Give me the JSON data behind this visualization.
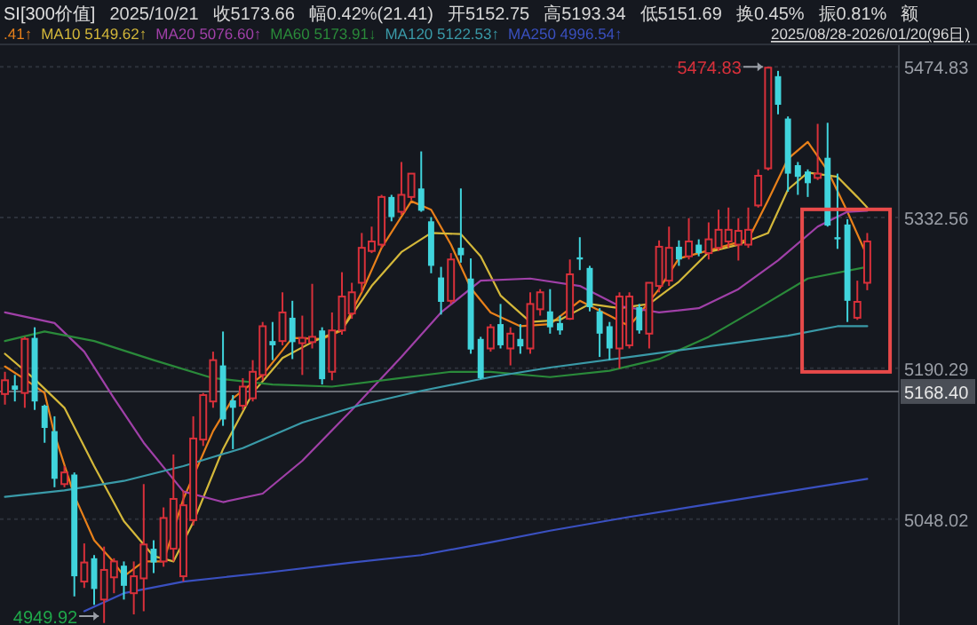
{
  "chart_data": {
    "type": "candlestick",
    "title": "SI[300价值]",
    "subtitle": "2025/08/28-2026/01/20(96日)",
    "annotations": [
      "2025/10/21",
      "收5173.66",
      "幅0.42%(21.41)",
      "开5152.75",
      "高5193.34",
      "低5151.69",
      "换0.45%",
      "振0.81%",
      "额",
      "5474.83",
      "4949.92"
    ],
    "categories": [
      null,
      null,
      null,
      null,
      null,
      null,
      null,
      null,
      null,
      null,
      null,
      null,
      null,
      null,
      null,
      null,
      null,
      null,
      null,
      null,
      null,
      null,
      null,
      null,
      null,
      null,
      null,
      null,
      null,
      null,
      null,
      null,
      null,
      null,
      null,
      null,
      null,
      null,
      null,
      null,
      null,
      null,
      null,
      null,
      null,
      null,
      null,
      null,
      null,
      null,
      null,
      null,
      null,
      null,
      null,
      null,
      null,
      null,
      null,
      null,
      null,
      null,
      null,
      null,
      null,
      null,
      null,
      null,
      null,
      null,
      null,
      null,
      null,
      null,
      null,
      null,
      null,
      null,
      null,
      null,
      null,
      null,
      null,
      null,
      null,
      null,
      null,
      null
    ],
    "ohlc": [
      [
        5166,
        5187,
        5156,
        5179
      ],
      [
        5174,
        5184,
        5159,
        5170
      ],
      [
        5167,
        5220,
        5153,
        5218
      ],
      [
        5219,
        5229,
        5151,
        5159
      ],
      [
        5155,
        5156,
        5120,
        5134
      ],
      [
        5131,
        5145,
        5078,
        5086
      ],
      [
        5081,
        5098,
        5078,
        5092
      ],
      [
        5090,
        5092,
        4975,
        4994
      ],
      [
        4989,
        5025,
        4983,
        5007
      ],
      [
        5011,
        5014,
        4967,
        4982
      ],
      [
        4972,
        5022,
        4949.92,
        5000
      ],
      [
        4993,
        5011,
        4978,
        5008
      ],
      [
        5004,
        5008,
        4972,
        4985
      ],
      [
        4978,
        5008,
        4958,
        4994
      ],
      [
        4992,
        5081,
        4961,
        5024
      ],
      [
        5020,
        5028,
        4997,
        5007
      ],
      [
        5008,
        5059,
        5003,
        5049
      ],
      [
        5020,
        5109,
        5008,
        5067
      ],
      [
        4994,
        5075,
        4989,
        5061
      ],
      [
        5047,
        5145,
        5042,
        5124
      ],
      [
        5123,
        5167,
        5117,
        5165
      ],
      [
        5159,
        5206,
        5153,
        5198
      ],
      [
        5193,
        5225,
        5136,
        5142
      ],
      [
        5160,
        5165,
        5114,
        5153
      ],
      [
        5155,
        5181,
        5151,
        5173
      ],
      [
        5162,
        5198,
        5159,
        5187
      ],
      [
        5184,
        5234,
        5179,
        5230
      ],
      [
        5216,
        5234,
        5198,
        5212
      ],
      [
        5216,
        5262,
        5212,
        5243
      ],
      [
        5238,
        5254,
        5199,
        5215
      ],
      [
        5214,
        5240,
        5184,
        5219
      ],
      [
        5215,
        5270,
        5209,
        5220
      ],
      [
        5226,
        5229,
        5175,
        5180
      ],
      [
        5187,
        5243,
        5179,
        5226
      ],
      [
        5226,
        5281,
        5222,
        5258
      ],
      [
        5242,
        5271,
        5237,
        5262
      ],
      [
        5271,
        5318,
        5262,
        5304
      ],
      [
        5301,
        5324,
        5299,
        5310
      ],
      [
        5307,
        5354,
        5304,
        5352
      ],
      [
        5352,
        5354,
        5329,
        5333
      ],
      [
        5338,
        5385,
        5335,
        5354
      ],
      [
        5352,
        5374,
        5349,
        5374
      ],
      [
        5360,
        5395,
        5338,
        5339
      ],
      [
        5329,
        5333,
        5280,
        5287
      ],
      [
        5276,
        5286,
        5241,
        5253
      ],
      [
        5254,
        5299,
        5251,
        5293
      ],
      [
        5304,
        5360,
        5290,
        5297
      ],
      [
        5275,
        5294,
        5204,
        5208
      ],
      [
        5218,
        5220,
        5180,
        5181
      ],
      [
        5209,
        5232,
        5206,
        5229
      ],
      [
        5232,
        5251,
        5209,
        5212
      ],
      [
        5209,
        5229,
        5193,
        5223
      ],
      [
        5218,
        5232,
        5204,
        5211
      ],
      [
        5209,
        5262,
        5204,
        5251
      ],
      [
        5246,
        5265,
        5240,
        5262
      ],
      [
        5244,
        5265,
        5223,
        5229
      ],
      [
        5233,
        5240,
        5222,
        5226
      ],
      [
        5237,
        5293,
        5236,
        5279
      ],
      [
        5295,
        5314,
        5283,
        5293
      ],
      [
        5285,
        5287,
        5244,
        5248
      ],
      [
        5244,
        5247,
        5201,
        5223
      ],
      [
        5230,
        5234,
        5198,
        5209
      ],
      [
        5209,
        5262,
        5190,
        5258
      ],
      [
        5212,
        5262,
        5209,
        5258
      ],
      [
        5248,
        5251,
        5223,
        5226
      ],
      [
        5223,
        5271,
        5209,
        5271
      ],
      [
        5268,
        5311,
        5262,
        5305
      ],
      [
        5273,
        5324,
        5268,
        5304
      ],
      [
        5305,
        5311,
        5287,
        5293
      ],
      [
        5296,
        5332,
        5293,
        5310
      ],
      [
        5307,
        5312,
        5296,
        5299
      ],
      [
        5299,
        5328,
        5293,
        5312
      ],
      [
        5304,
        5340,
        5301,
        5321
      ],
      [
        5310,
        5342,
        5304,
        5321
      ],
      [
        5307,
        5332,
        5292,
        5320
      ],
      [
        5307,
        5342,
        5304,
        5321
      ],
      [
        5344,
        5378,
        5342,
        5372
      ],
      [
        5379,
        5474.83,
        5377,
        5474
      ],
      [
        5466,
        5471,
        5430,
        5439
      ],
      [
        5426,
        5428,
        5357,
        5374
      ],
      [
        5382,
        5385,
        5354,
        5371
      ],
      [
        5376,
        5378,
        5352,
        5365
      ],
      [
        5370,
        5421,
        5368,
        5374
      ],
      [
        5389,
        5422,
        5324,
        5325
      ],
      [
        5314,
        5374,
        5303,
        5312
      ],
      [
        5326,
        5331,
        5234,
        5254
      ],
      [
        5238,
        5273,
        5236,
        5253
      ],
      [
        5271,
        5318,
        5264,
        5310
      ]
    ],
    "series": [
      {
        "type": "line",
        "name": ".41↑",
        "color": "#e8801a",
        "values": [
          5192,
          null,
          5180,
          null,
          5167,
          5128,
          null,
          5070,
          null,
          5028,
          null,
          5007,
          4994,
          null,
          5008,
          null,
          5008,
          null,
          5067,
          null,
          null,
          5131,
          null,
          5162,
          null,
          null,
          5184,
          null,
          null,
          5219,
          null,
          null,
          5218,
          null,
          5226,
          null,
          5262,
          null,
          5304,
          null,
          null,
          5348,
          null,
          5340,
          null,
          5307,
          null,
          5266,
          null,
          5243,
          null,
          null,
          5230,
          null,
          null,
          5232,
          null,
          null,
          5254,
          null,
          null,
          5240,
          null,
          5230,
          null,
          null,
          5265,
          null,
          5294,
          null,
          null,
          null,
          5304,
          null,
          null,
          5312,
          null,
          5349,
          null,
          5388,
          null,
          5404,
          null,
          5377,
          null,
          5338,
          null,
          5296
        ]
      },
      {
        "type": "line",
        "name": "MA10 5149.62↑",
        "color": "#d4b83a",
        "values": [
          5204,
          null,
          null,
          5180,
          null,
          null,
          5153,
          null,
          null,
          5098,
          null,
          null,
          5046,
          null,
          null,
          5013,
          null,
          5008,
          null,
          5045,
          null,
          null,
          5114,
          null,
          null,
          5167,
          null,
          null,
          5200,
          null,
          null,
          5215,
          null,
          null,
          5227,
          null,
          null,
          5268,
          null,
          null,
          5300,
          null,
          null,
          5318,
          null,
          null,
          5317,
          null,
          5296,
          null,
          5259,
          null,
          null,
          5234,
          null,
          null,
          5236,
          null,
          null,
          5251,
          null,
          null,
          5247,
          null,
          null,
          5251,
          null,
          null,
          5272,
          null,
          null,
          5300,
          null,
          null,
          5307,
          null,
          null,
          5318,
          null,
          5359,
          null,
          5375,
          null,
          null,
          5371,
          null,
          5352,
          5342
        ]
      },
      {
        "type": "line",
        "name": "MA20 5076.60↑",
        "color": "#a040a8",
        "values": [
          5243,
          null,
          null,
          null,
          null,
          5233,
          null,
          null,
          5206,
          null,
          null,
          5162,
          null,
          null,
          5120,
          null,
          null,
          null,
          5074,
          null,
          null,
          null,
          5064,
          null,
          null,
          null,
          5072,
          null,
          null,
          null,
          5103,
          null,
          null,
          null,
          null,
          5151,
          null,
          null,
          null,
          null,
          5201,
          null,
          null,
          null,
          5243,
          null,
          null,
          null,
          5273,
          null,
          null,
          null,
          null,
          5275,
          null,
          null,
          null,
          null,
          5268,
          null,
          null,
          null,
          5249,
          null,
          null,
          null,
          5243,
          null,
          null,
          null,
          5247,
          null,
          null,
          null,
          5265,
          null,
          null,
          null,
          5292,
          null,
          null,
          null,
          5324,
          null,
          null,
          5338,
          null,
          5339
        ]
      },
      {
        "type": "line",
        "name": "MA60 5173.91↓",
        "color": "#2a8a3a",
        "values": [
          5216,
          null,
          null,
          null,
          5225,
          null,
          null,
          null,
          null,
          5216,
          null,
          null,
          null,
          null,
          null,
          5198,
          null,
          null,
          null,
          null,
          null,
          5181,
          null,
          null,
          null,
          null,
          null,
          5175,
          null,
          null,
          null,
          null,
          null,
          5173,
          null,
          null,
          null,
          null,
          null,
          5180,
          null,
          null,
          null,
          null,
          null,
          5187,
          null,
          null,
          null,
          5187,
          null,
          null,
          null,
          null,
          null,
          5182,
          null,
          null,
          null,
          null,
          null,
          5188,
          null,
          null,
          null,
          null,
          5199,
          null,
          null,
          null,
          null,
          5220,
          null,
          null,
          null,
          null,
          5247,
          null,
          null,
          null,
          null,
          5275,
          null,
          null,
          null,
          null,
          null,
          5286
        ]
      },
      {
        "type": "line",
        "name": "MA120 5122.53↑",
        "color": "#3a9aa8",
        "values": [
          5069,
          null,
          null,
          null,
          null,
          null,
          5075,
          null,
          null,
          null,
          null,
          null,
          5084,
          null,
          null,
          null,
          null,
          null,
          5098,
          null,
          null,
          null,
          null,
          null,
          5115,
          null,
          null,
          null,
          null,
          null,
          5139,
          null,
          null,
          null,
          null,
          null,
          5156,
          null,
          null,
          null,
          null,
          null,
          5169,
          null,
          null,
          null,
          null,
          null,
          null,
          5182,
          null,
          null,
          null,
          null,
          null,
          5191,
          null,
          null,
          null,
          null,
          null,
          null,
          null,
          5201,
          null,
          null,
          null,
          null,
          null,
          null,
          null,
          5211,
          null,
          null,
          null,
          null,
          null,
          null,
          null,
          5221,
          null,
          null,
          null,
          null,
          5230,
          null,
          null,
          5230
        ]
      },
      {
        "type": "line",
        "name": "MA250 4996.54↑",
        "color": "#3a50c0",
        "values": [
          null,
          null,
          null,
          null,
          null,
          null,
          null,
          null,
          4961,
          null,
          null,
          null,
          4978,
          null,
          null,
          null,
          null,
          null,
          4989,
          null,
          null,
          null,
          null,
          null,
          null,
          null,
          4997,
          null,
          null,
          null,
          null,
          null,
          null,
          null,
          null,
          5007,
          null,
          null,
          null,
          null,
          null,
          null,
          5014,
          null,
          null,
          null,
          null,
          null,
          null,
          5026,
          null,
          null,
          null,
          null,
          null,
          5037,
          null,
          null,
          null,
          null,
          null,
          null,
          null,
          5050,
          null,
          null,
          null,
          null,
          null,
          null,
          null,
          5062,
          null,
          null,
          null,
          null,
          null,
          null,
          null,
          5074,
          null,
          null,
          null,
          null,
          null,
          null,
          null,
          5086
        ]
      }
    ],
    "ylim": [
      4948,
      5496
    ],
    "yticks": [
      5474.83,
      5332.56,
      5190.29,
      5048.02
    ],
    "ref_lines": [
      {
        "axis": "y",
        "value": 5168.4,
        "label": "5168.40"
      }
    ],
    "grid": "y",
    "legend": "top"
  }
}
